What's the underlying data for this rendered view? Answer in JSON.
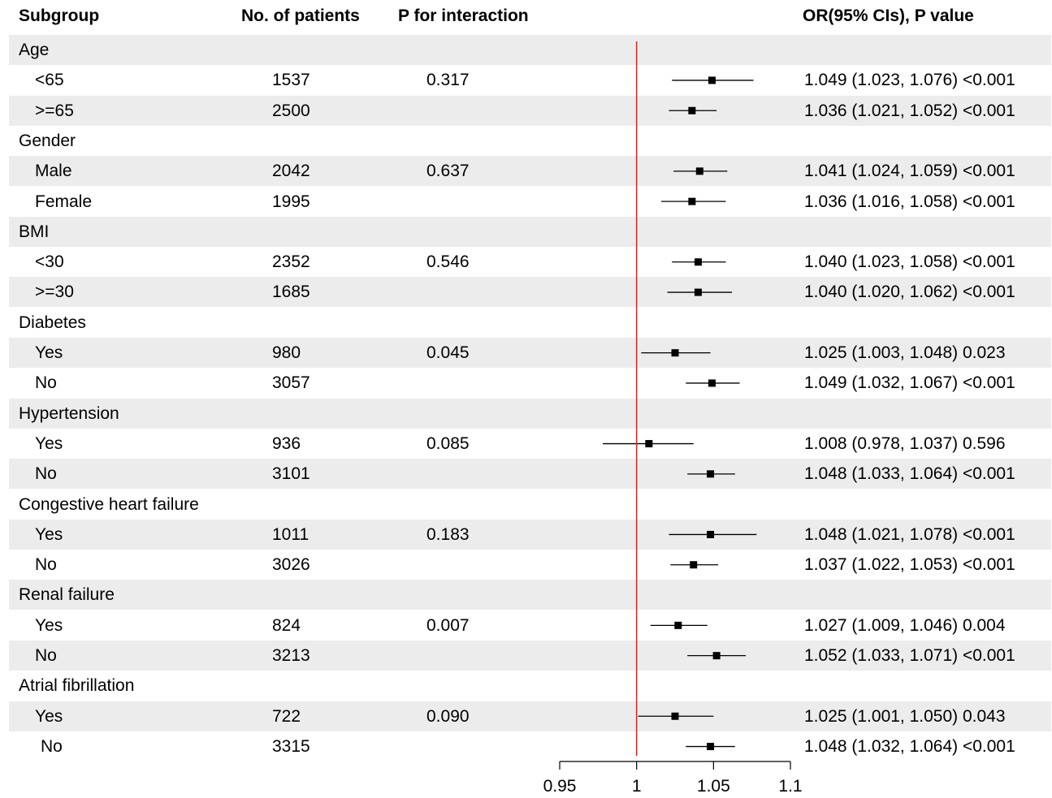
{
  "headers": {
    "subgroup": "Subgroup",
    "patients": "No. of patients",
    "p_interaction": "P for interaction",
    "or_ci": "OR(95% CIs), P value"
  },
  "colors": {
    "reference_line": "#e8241c",
    "row_shade": "#ececec",
    "marker": "#000000"
  },
  "chart_data": {
    "type": "forest",
    "reference_value": 1,
    "xlim": [
      0.95,
      1.1
    ],
    "xticks": [
      0.95,
      1,
      1.05,
      1.1
    ],
    "xtick_labels": [
      "0.95",
      "1",
      "1.05",
      "1.1"
    ],
    "rows": [
      {
        "label": "Age",
        "kind": "group"
      },
      {
        "label": "<65",
        "kind": "sub",
        "n": "1537",
        "p": "0.317",
        "or": 1.049,
        "lo": 1.023,
        "hi": 1.076,
        "text": "1.049 (1.023, 1.076) <0.001"
      },
      {
        "label": ">=65",
        "kind": "sub",
        "n": "2500",
        "p": "",
        "or": 1.036,
        "lo": 1.021,
        "hi": 1.052,
        "text": "1.036 (1.021, 1.052) <0.001"
      },
      {
        "label": "Gender",
        "kind": "group"
      },
      {
        "label": "Male",
        "kind": "sub",
        "n": "2042",
        "p": "0.637",
        "or": 1.041,
        "lo": 1.024,
        "hi": 1.059,
        "text": "1.041 (1.024, 1.059) <0.001"
      },
      {
        "label": "Female",
        "kind": "sub",
        "n": "1995",
        "p": "",
        "or": 1.036,
        "lo": 1.016,
        "hi": 1.058,
        "text": "1.036 (1.016, 1.058) <0.001"
      },
      {
        "label": "BMI",
        "kind": "group"
      },
      {
        "label": "<30",
        "kind": "sub",
        "n": "2352",
        "p": "0.546",
        "or": 1.04,
        "lo": 1.023,
        "hi": 1.058,
        "text": "1.040 (1.023, 1.058) <0.001"
      },
      {
        "label": ">=30",
        "kind": "sub",
        "n": "1685",
        "p": "",
        "or": 1.04,
        "lo": 1.02,
        "hi": 1.062,
        "text": "1.040 (1.020, 1.062) <0.001"
      },
      {
        "label": "Diabetes",
        "kind": "group"
      },
      {
        "label": "Yes",
        "kind": "sub",
        "n": "980",
        "p": "0.045",
        "or": 1.025,
        "lo": 1.003,
        "hi": 1.048,
        "text": "1.025 (1.003, 1.048) 0.023"
      },
      {
        "label": "No",
        "kind": "sub",
        "n": "3057",
        "p": "",
        "or": 1.049,
        "lo": 1.032,
        "hi": 1.067,
        "text": "1.049 (1.032, 1.067) <0.001"
      },
      {
        "label": "Hypertension",
        "kind": "group"
      },
      {
        "label": "Yes",
        "kind": "sub",
        "n": "936",
        "p": "0.085",
        "or": 1.008,
        "lo": 0.978,
        "hi": 1.037,
        "text": "1.008 (0.978, 1.037) 0.596"
      },
      {
        "label": "No",
        "kind": "sub",
        "n": "3101",
        "p": "",
        "or": 1.048,
        "lo": 1.033,
        "hi": 1.064,
        "text": "1.048 (1.033, 1.064) <0.001"
      },
      {
        "label": "Congestive heart failure",
        "kind": "group"
      },
      {
        "label": "Yes",
        "kind": "sub",
        "n": "1011",
        "p": "0.183",
        "or": 1.048,
        "lo": 1.021,
        "hi": 1.078,
        "text": "1.048 (1.021, 1.078) <0.001"
      },
      {
        "label": "No",
        "kind": "sub",
        "n": "3026",
        "p": "",
        "or": 1.037,
        "lo": 1.022,
        "hi": 1.053,
        "text": "1.037 (1.022, 1.053) <0.001"
      },
      {
        "label": "Renal failure",
        "kind": "group"
      },
      {
        "label": "Yes",
        "kind": "sub",
        "n": "824",
        "p": "0.007",
        "or": 1.027,
        "lo": 1.009,
        "hi": 1.046,
        "text": "1.027 (1.009, 1.046) 0.004"
      },
      {
        "label": "No",
        "kind": "sub",
        "n": "3213",
        "p": "",
        "or": 1.052,
        "lo": 1.033,
        "hi": 1.071,
        "text": "1.052 (1.033, 1.071) <0.001"
      },
      {
        "label": "Atrial fibrillation",
        "kind": "group"
      },
      {
        "label": "Yes",
        "kind": "sub",
        "n": "722",
        "p": "0.090",
        "or": 1.025,
        "lo": 1.001,
        "hi": 1.05,
        "text": "1.025 (1.001, 1.050) 0.043"
      },
      {
        "label": "No",
        "kind": "sub",
        "n": "3315",
        "p": "",
        "or": 1.048,
        "lo": 1.032,
        "hi": 1.064,
        "text": "1.048 (1.032, 1.064) <0.001"
      }
    ]
  }
}
